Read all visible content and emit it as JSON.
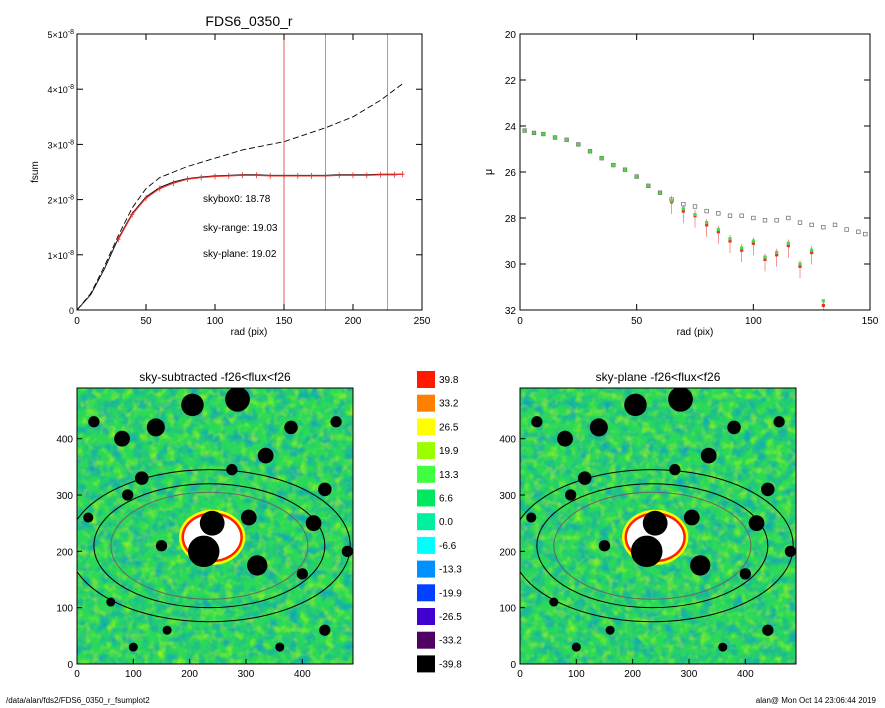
{
  "chart_data": [
    {
      "type": "line",
      "title": "FDS6_0350_r",
      "xlabel": "rad (pix)",
      "ylabel": "fsum",
      "xlim": [
        0,
        250
      ],
      "ylim": [
        0,
        5e-08
      ],
      "xticks": [
        "0",
        "50",
        "100",
        "150",
        "200",
        "250"
      ],
      "yticks": [
        {
          "value": 0,
          "mant": "0",
          "exp": ""
        },
        {
          "value": 1e-08,
          "mant": "1×10",
          "exp": "-8"
        },
        {
          "value": 2e-08,
          "mant": "2×10",
          "exp": "-8"
        },
        {
          "value": 3e-08,
          "mant": "3×10",
          "exp": "-8"
        },
        {
          "value": 4e-08,
          "mant": "4×10",
          "exp": "-8"
        },
        {
          "value": 5e-08,
          "mant": "5×10",
          "exp": "-8"
        }
      ],
      "grid": false,
      "series": [
        {
          "style": "dashed",
          "color": "#000000",
          "x": [
            0,
            10,
            20,
            30,
            40,
            50,
            60,
            70,
            80,
            100,
            120,
            150,
            180,
            200,
            220,
            236
          ],
          "y": [
            0,
            3e-09,
            8e-09,
            1.35e-08,
            1.85e-08,
            2.2e-08,
            2.4e-08,
            2.5e-08,
            2.6e-08,
            2.75e-08,
            2.9e-08,
            3.05e-08,
            3.3e-08,
            3.5e-08,
            3.8e-08,
            4.1e-08
          ]
        },
        {
          "style": "solid",
          "color": "#000000",
          "x": [
            0,
            10,
            20,
            30,
            40,
            50,
            60,
            70,
            80,
            90,
            100,
            110,
            120,
            130,
            140,
            150,
            160,
            170,
            180,
            190,
            200,
            210,
            220,
            230,
            236
          ],
          "y": [
            0,
            2.8e-09,
            7.5e-09,
            1.3e-08,
            1.75e-08,
            2.05e-08,
            2.22e-08,
            2.32e-08,
            2.38e-08,
            2.41e-08,
            2.43e-08,
            2.44e-08,
            2.45e-08,
            2.45e-08,
            2.44e-08,
            2.44e-08,
            2.44e-08,
            2.44e-08,
            2.44e-08,
            2.45e-08,
            2.45e-08,
            2.45e-08,
            2.46e-08,
            2.46e-08,
            2.46e-08
          ]
        },
        {
          "style": "errorbars",
          "color": "#e8302a",
          "x": [
            30,
            40,
            50,
            60,
            70,
            80,
            90,
            100,
            110,
            120,
            130,
            140,
            150,
            160,
            170,
            180,
            190,
            200,
            210,
            220,
            230,
            236
          ],
          "y": [
            1.28e-08,
            1.73e-08,
            2.03e-08,
            2.2e-08,
            2.3e-08,
            2.37e-08,
            2.4e-08,
            2.42e-08,
            2.43e-08,
            2.44e-08,
            2.44e-08,
            2.43e-08,
            2.43e-08,
            2.43e-08,
            2.43e-08,
            2.43e-08,
            2.44e-08,
            2.44e-08,
            2.44e-08,
            2.45e-08,
            2.45e-08,
            2.46e-08
          ]
        }
      ],
      "vlines": [
        {
          "x": 150,
          "color": "#d9322a"
        },
        {
          "x": 180,
          "color": "#888888"
        },
        {
          "x": 225,
          "color": "#888888"
        }
      ],
      "annotations": [
        {
          "text": "skybox0: 18.78",
          "color": "#000000"
        },
        {
          "text": "sky-range: 19.03",
          "color": "#e8302a"
        },
        {
          "text": "sky-plane: 19.02",
          "color": "#3ad83a"
        }
      ]
    },
    {
      "type": "scatter",
      "title": "",
      "xlabel": "rad (pix)",
      "ylabel": "μ",
      "xlim": [
        0,
        150
      ],
      "ylim": [
        32,
        20
      ],
      "xticks": [
        "0",
        "50",
        "100",
        "150"
      ],
      "yticks": [
        "20",
        "22",
        "24",
        "26",
        "28",
        "30",
        "32"
      ],
      "grid": false,
      "series": [
        {
          "marker": "square-open",
          "color": "#666666",
          "x": [
            2,
            6,
            10,
            15,
            20,
            25,
            30,
            35,
            40,
            45,
            50,
            55,
            60,
            65,
            70,
            75,
            80,
            85,
            90,
            95,
            100,
            105,
            110,
            115,
            120,
            125,
            130,
            135,
            140,
            145,
            148
          ],
          "y": [
            24.2,
            24.3,
            24.35,
            24.5,
            24.6,
            24.8,
            25.1,
            25.4,
            25.7,
            25.9,
            26.2,
            26.6,
            26.9,
            27.2,
            27.4,
            27.5,
            27.7,
            27.8,
            27.9,
            27.9,
            28.0,
            28.1,
            28.1,
            28.0,
            28.2,
            28.3,
            28.4,
            28.3,
            28.5,
            28.6,
            28.7
          ]
        },
        {
          "marker": "square-filled",
          "color": "#e8302a",
          "x": [
            2,
            6,
            10,
            15,
            20,
            25,
            30,
            35,
            40,
            45,
            50,
            55,
            60,
            65,
            70,
            75,
            80,
            85,
            90,
            95,
            100,
            105,
            110,
            115,
            120,
            125,
            130
          ],
          "y": [
            24.2,
            24.3,
            24.35,
            24.5,
            24.6,
            24.8,
            25.1,
            25.4,
            25.7,
            25.9,
            26.2,
            26.6,
            26.9,
            27.3,
            27.7,
            27.9,
            28.3,
            28.6,
            29.0,
            29.4,
            29.1,
            29.8,
            29.6,
            29.2,
            30.1,
            29.5,
            31.8
          ]
        },
        {
          "marker": "square-filled",
          "color": "#4cd84c",
          "x": [
            2,
            6,
            10,
            15,
            20,
            25,
            30,
            35,
            40,
            45,
            50,
            55,
            60,
            65,
            70,
            75,
            80,
            85,
            90,
            95,
            100,
            105,
            110,
            115,
            120,
            125,
            130
          ],
          "y": [
            24.2,
            24.3,
            24.35,
            24.5,
            24.6,
            24.8,
            25.1,
            25.4,
            25.7,
            25.9,
            26.2,
            26.6,
            26.9,
            27.25,
            27.6,
            27.85,
            28.2,
            28.5,
            28.9,
            29.3,
            29.0,
            29.7,
            29.5,
            29.1,
            30.0,
            29.4,
            31.6
          ]
        }
      ]
    },
    {
      "type": "heatmap",
      "title": "sky-subtracted -f26<flux<f26",
      "xlim": [
        0,
        490
      ],
      "ylim": [
        0,
        490
      ],
      "xticks": [
        "0",
        "100",
        "200",
        "300",
        "400"
      ],
      "yticks": [
        "0",
        "100",
        "200",
        "300",
        "400"
      ],
      "ellipses": [
        {
          "cx": 235,
          "cy": 210,
          "rx": 250,
          "ry": 135
        },
        {
          "cx": 235,
          "cy": 210,
          "rx": 205,
          "ry": 110
        },
        {
          "cx": 235,
          "cy": 210,
          "rx": 175,
          "ry": 95
        }
      ],
      "masks": [
        {
          "x": 285,
          "y": 470,
          "r": 22
        },
        {
          "x": 205,
          "y": 460,
          "r": 20
        },
        {
          "x": 140,
          "y": 420,
          "r": 16
        },
        {
          "x": 80,
          "y": 400,
          "r": 14
        },
        {
          "x": 30,
          "y": 430,
          "r": 10
        },
        {
          "x": 115,
          "y": 330,
          "r": 12
        },
        {
          "x": 335,
          "y": 370,
          "r": 14
        },
        {
          "x": 275,
          "y": 345,
          "r": 10
        },
        {
          "x": 440,
          "y": 310,
          "r": 12
        },
        {
          "x": 420,
          "y": 250,
          "r": 14
        },
        {
          "x": 305,
          "y": 260,
          "r": 14
        },
        {
          "x": 240,
          "y": 250,
          "r": 22
        },
        {
          "x": 225,
          "y": 200,
          "r": 28
        },
        {
          "x": 150,
          "y": 210,
          "r": 10
        },
        {
          "x": 90,
          "y": 300,
          "r": 10
        },
        {
          "x": 320,
          "y": 175,
          "r": 18
        },
        {
          "x": 400,
          "y": 160,
          "r": 10
        },
        {
          "x": 460,
          "y": 430,
          "r": 10
        },
        {
          "x": 60,
          "y": 110,
          "r": 8
        },
        {
          "x": 440,
          "y": 60,
          "r": 10
        },
        {
          "x": 160,
          "y": 60,
          "r": 8
        },
        {
          "x": 100,
          "y": 30,
          "r": 8
        },
        {
          "x": 360,
          "y": 30,
          "r": 8
        },
        {
          "x": 480,
          "y": 200,
          "r": 10
        },
        {
          "x": 20,
          "y": 260,
          "r": 9
        },
        {
          "x": 380,
          "y": 420,
          "r": 12
        }
      ],
      "hole": {
        "x": 240,
        "y": 225,
        "rx": 50,
        "ry": 40
      }
    },
    {
      "type": "heatmap",
      "title": "sky-plane -f26<flux<f26",
      "xlim": [
        0,
        490
      ],
      "ylim": [
        0,
        490
      ],
      "xticks": [
        "0",
        "100",
        "200",
        "300",
        "400"
      ],
      "yticks": [
        "0",
        "100",
        "200",
        "300",
        "400"
      ],
      "ellipses": [
        {
          "cx": 235,
          "cy": 210,
          "rx": 250,
          "ry": 135
        },
        {
          "cx": 235,
          "cy": 210,
          "rx": 205,
          "ry": 110
        },
        {
          "cx": 235,
          "cy": 210,
          "rx": 175,
          "ry": 95
        }
      ],
      "masks": [
        {
          "x": 285,
          "y": 470,
          "r": 22
        },
        {
          "x": 205,
          "y": 460,
          "r": 20
        },
        {
          "x": 140,
          "y": 420,
          "r": 16
        },
        {
          "x": 80,
          "y": 400,
          "r": 14
        },
        {
          "x": 30,
          "y": 430,
          "r": 10
        },
        {
          "x": 115,
          "y": 330,
          "r": 12
        },
        {
          "x": 335,
          "y": 370,
          "r": 14
        },
        {
          "x": 275,
          "y": 345,
          "r": 10
        },
        {
          "x": 440,
          "y": 310,
          "r": 12
        },
        {
          "x": 420,
          "y": 250,
          "r": 14
        },
        {
          "x": 305,
          "y": 260,
          "r": 14
        },
        {
          "x": 240,
          "y": 250,
          "r": 22
        },
        {
          "x": 225,
          "y": 200,
          "r": 28
        },
        {
          "x": 150,
          "y": 210,
          "r": 10
        },
        {
          "x": 90,
          "y": 300,
          "r": 10
        },
        {
          "x": 320,
          "y": 175,
          "r": 18
        },
        {
          "x": 400,
          "y": 160,
          "r": 10
        },
        {
          "x": 460,
          "y": 430,
          "r": 10
        },
        {
          "x": 60,
          "y": 110,
          "r": 8
        },
        {
          "x": 440,
          "y": 60,
          "r": 10
        },
        {
          "x": 160,
          "y": 60,
          "r": 8
        },
        {
          "x": 100,
          "y": 30,
          "r": 8
        },
        {
          "x": 360,
          "y": 30,
          "r": 8
        },
        {
          "x": 480,
          "y": 200,
          "r": 10
        },
        {
          "x": 20,
          "y": 260,
          "r": 9
        },
        {
          "x": 380,
          "y": 420,
          "r": 12
        }
      ],
      "hole": {
        "x": 240,
        "y": 225,
        "rx": 50,
        "ry": 40
      }
    }
  ],
  "colorbar": [
    {
      "label": "39.8",
      "color": "#ff1a00"
    },
    {
      "label": "33.2",
      "color": "#ff8000"
    },
    {
      "label": "26.5",
      "color": "#ffff00"
    },
    {
      "label": "19.9",
      "color": "#9cff00"
    },
    {
      "label": "13.3",
      "color": "#40ff40"
    },
    {
      "label": "6.6",
      "color": "#00e860"
    },
    {
      "label": "0.0",
      "color": "#00f0a0"
    },
    {
      "label": "-6.6",
      "color": "#00ffff"
    },
    {
      "label": "-13.3",
      "color": "#0090ff"
    },
    {
      "label": "-19.9",
      "color": "#0040ff"
    },
    {
      "label": "-26.5",
      "color": "#4000d0"
    },
    {
      "label": "-33.2",
      "color": "#500060"
    },
    {
      "label": "-39.8",
      "color": "#000000"
    }
  ],
  "footer": {
    "path": "/data/alan/fds2/FDS6_0350_r_fsumplot2",
    "stamp": "alan@  Mon Oct 14 23:06:44 2019"
  }
}
